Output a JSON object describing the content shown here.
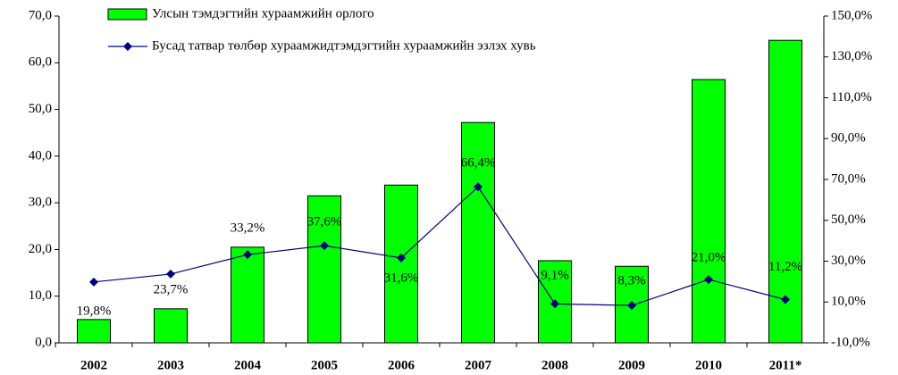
{
  "chart_data": {
    "type": "bar",
    "categories": [
      "2002",
      "2003",
      "2004",
      "2005",
      "2006",
      "2007",
      "2008",
      "2009",
      "2010",
      "2011*"
    ],
    "series": [
      {
        "name": "Улсын тэмдэгтийн хураамжийн орлого",
        "type": "bar",
        "color": "#00ff00",
        "values": [
          5.0,
          7.3,
          20.5,
          31.5,
          33.8,
          47.2,
          17.6,
          16.4,
          56.4,
          64.8
        ]
      },
      {
        "name": "Бусад татвар төлбөр хураамжидтэмдэгтийн хураамжийн эзлэх хувь",
        "type": "line",
        "axis": "y2",
        "color": "#000080",
        "values": [
          19.8,
          23.7,
          33.2,
          37.6,
          31.6,
          66.4,
          9.1,
          8.3,
          21.0,
          11.2
        ],
        "value_labels": [
          "19,8%",
          "23,7%",
          "33,2%",
          "37,6%",
          "31,6%",
          "66,4%",
          "9,1%",
          "8,3%",
          "21,0%",
          "11,2%"
        ]
      }
    ],
    "ylim": [
      0,
      70
    ],
    "yticks": [
      {
        "value": 0,
        "label": "0,0"
      },
      {
        "value": 10,
        "label": "10,0"
      },
      {
        "value": 20,
        "label": "20,0"
      },
      {
        "value": 30,
        "label": "30,0"
      },
      {
        "value": 40,
        "label": "40,0"
      },
      {
        "value": 50,
        "label": "50,0"
      },
      {
        "value": 60,
        "label": "60,0"
      },
      {
        "value": 70,
        "label": "70,0"
      }
    ],
    "y2lim": [
      -10,
      150
    ],
    "y2ticks": [
      {
        "value": -10,
        "label": "-10,0%"
      },
      {
        "value": 10,
        "label": "10,0%"
      },
      {
        "value": 30,
        "label": "30,0%"
      },
      {
        "value": 50,
        "label": "50,0%"
      },
      {
        "value": 70,
        "label": "70,0%"
      },
      {
        "value": 90,
        "label": "90,0%"
      },
      {
        "value": 110,
        "label": "110,0%"
      },
      {
        "value": 130,
        "label": "130,0%"
      },
      {
        "value": 150,
        "label": "150,0%"
      }
    ],
    "grid": false
  }
}
